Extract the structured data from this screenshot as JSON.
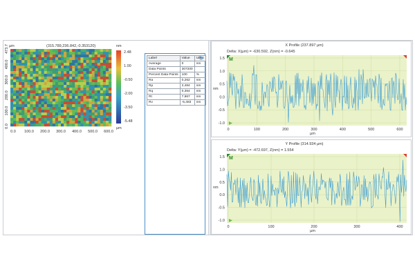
{
  "colors": {
    "trace": "#3a9bd5",
    "plot_bg": "#eaf2c9",
    "panel_border": "#4a8fc6"
  },
  "surface_map": {
    "coord_readout": "(315.789,236.842,-0.353120)",
    "y_axis_unit": "µm",
    "y_ticks": [
      "0.0",
      "100.0",
      "200.0",
      "300.0",
      "400.0",
      "473.7"
    ],
    "x_ticks": [
      "0.0",
      "100.0",
      "200.0",
      "300.0",
      "400.0",
      "500.0",
      "600.0"
    ],
    "colorbar_unit_top": "nm",
    "colorbar_unit_bottom": "µm",
    "colorbar_ticks": [
      "2.48",
      "1.00",
      "-0.50",
      "-2.00",
      "-3.50",
      "-5.48"
    ]
  },
  "stats_table": {
    "headers": [
      "Label",
      "Value",
      "Units"
    ],
    "rows": [
      [
        "Average",
        "0",
        "nm"
      ],
      [
        "Data Points",
        "307200",
        ""
      ],
      [
        "Percent Data Points",
        "100",
        "%"
      ],
      [
        "Ra",
        "0,262",
        "nm"
      ],
      [
        "Rp",
        "2,484",
        "nm"
      ],
      [
        "Rq",
        "0,354",
        "nm"
      ],
      [
        "Rt",
        "7,967",
        "nm"
      ],
      [
        "Rv",
        "-5,483",
        "nm"
      ]
    ],
    "refresh_icon": "refresh-icon"
  },
  "x_profile": {
    "title": "X Profile (237.897 µm)",
    "delta_readout": "Delta:  X(µm) = -630.592,   Z(nm) = -0.645",
    "marker_label": "M",
    "y_unit": "nm",
    "x_unit": "µm",
    "y_ticks": [
      "1.5",
      "1.0",
      "0.5",
      "0.0",
      "-0.5",
      "-1.0"
    ],
    "x_ticks": [
      "0",
      "100",
      "200",
      "300",
      "400",
      "500",
      "600"
    ]
  },
  "y_profile": {
    "title": "Y Profile (314.934 µm)",
    "delta_readout": "Delta:  Y(µm) = -472.697,   Z(nm) = 1.554",
    "marker_label": "M",
    "y_unit": "nm",
    "x_unit": "µm",
    "y_ticks": [
      "1.5",
      "1.0",
      "0.5",
      "0.0",
      "-0.5",
      "-1.0"
    ],
    "x_ticks": [
      "0",
      "100",
      "200",
      "300",
      "400"
    ]
  }
}
